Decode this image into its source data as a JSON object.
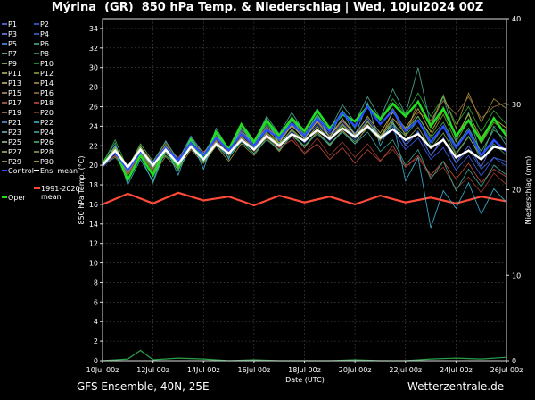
{
  "header": {
    "title": "Mýrina  (GR)  850 hPa Temp. & Niederschlag | Wed, 10Jul2024 00Z"
  },
  "footer": {
    "model": "GFS Ensemble, 40N, 25E",
    "source": "Wetterzentrale.de"
  },
  "chart_data": {
    "type": "line",
    "title": "Mýrina  (GR)  850 hPa Temp. & Niederschlag | Wed, 10Jul2024 00Z",
    "xlabel": "Date (UTC)",
    "ylabel": "850 hPa Temp. (°C)",
    "y2label": "Niederschlag (mm)",
    "ylim": [
      0,
      35
    ],
    "y2lim": [
      0,
      40
    ],
    "yticks": [
      0,
      2,
      4,
      6,
      8,
      10,
      12,
      14,
      16,
      18,
      20,
      22,
      24,
      26,
      28,
      30,
      32,
      34
    ],
    "y2ticks": [
      0,
      10,
      20,
      30,
      40
    ],
    "x_range_days": [
      0,
      16
    ],
    "x_ticks": [
      {
        "day": 0,
        "label": "10Jul 00z"
      },
      {
        "day": 2,
        "label": "12Jul 00z"
      },
      {
        "day": 4,
        "label": "14Jul 00z"
      },
      {
        "day": 6,
        "label": "16Jul 00z"
      },
      {
        "day": 8,
        "label": "18Jul 00z"
      },
      {
        "day": 10,
        "label": "20Jul 00z"
      },
      {
        "day": 12,
        "label": "22Jul 00z"
      },
      {
        "day": 14,
        "label": "24Jul 00z"
      },
      {
        "day": 16,
        "label": "26Jul 00z"
      }
    ],
    "grid": true,
    "legend_position": "left",
    "legend": [
      {
        "label": "P1",
        "color": "#6b7cff"
      },
      {
        "label": "P2",
        "color": "#3b66ff"
      },
      {
        "label": "P3",
        "color": "#7a8cff"
      },
      {
        "label": "P4",
        "color": "#3f6cd8"
      },
      {
        "label": "P5",
        "color": "#4fa0ff"
      },
      {
        "label": "P6",
        "color": "#4fb6a0"
      },
      {
        "label": "P7",
        "color": "#7fd0a0"
      },
      {
        "label": "P8",
        "color": "#3fae7a"
      },
      {
        "label": "P9",
        "color": "#9fd070"
      },
      {
        "label": "P10",
        "color": "#2fb43a"
      },
      {
        "label": "P11",
        "color": "#c0c060"
      },
      {
        "label": "P12",
        "color": "#8fb030"
      },
      {
        "label": "P13",
        "color": "#d0c070"
      },
      {
        "label": "P14",
        "color": "#b09a40"
      },
      {
        "label": "P15",
        "color": "#c09a70"
      },
      {
        "label": "P16",
        "color": "#a07a40"
      },
      {
        "label": "P17",
        "color": "#c07050"
      },
      {
        "label": "P18",
        "color": "#d05040"
      },
      {
        "label": "P19",
        "color": "#c08060"
      },
      {
        "label": "P20",
        "color": "#a04030"
      },
      {
        "label": "P21",
        "color": "#60a0e0"
      },
      {
        "label": "P22",
        "color": "#40c0e0"
      },
      {
        "label": "P23",
        "color": "#70c0c0"
      },
      {
        "label": "P24",
        "color": "#40b0a0"
      },
      {
        "label": "P25",
        "color": "#a0d0a0"
      },
      {
        "label": "P26",
        "color": "#50c070"
      },
      {
        "label": "P27",
        "color": "#b0c070"
      },
      {
        "label": "P28",
        "color": "#90b050"
      },
      {
        "label": "P29",
        "color": "#c0b050"
      },
      {
        "label": "P30",
        "color": "#d0c040"
      },
      {
        "label": "Control",
        "color": "#2a4dff"
      },
      {
        "label": "Ens. mean",
        "color": "#ffffff"
      },
      {
        "label": "Oper",
        "color": "#22dd22"
      },
      {
        "label": "1991-2020 mean",
        "color": "#ff4a3a"
      }
    ],
    "step_hours": 6,
    "climate_mean": {
      "name": "1991-2020 mean",
      "color": "#ff4a3a",
      "daily_values": [
        16.0,
        17.1,
        16.1,
        17.2,
        16.4,
        16.8,
        15.9,
        16.9,
        16.2,
        16.8,
        16.0,
        16.9,
        16.2,
        16.7,
        16.1,
        16.8,
        16.3
      ],
      "note_x_days": 0
    },
    "ens_mean": {
      "name": "Ens. mean",
      "color": "#ffffff",
      "x_days": [
        0,
        0.5,
        1,
        1.5,
        2,
        2.5,
        3,
        3.5,
        4,
        4.5,
        5,
        5.5,
        6,
        6.5,
        7,
        7.5,
        8,
        8.5,
        9,
        9.5,
        10,
        10.5,
        11,
        11.5,
        12,
        12.5,
        13,
        13.5,
        14,
        14.5,
        15,
        15.5,
        16
      ],
      "values": [
        20.0,
        21.5,
        19.8,
        21.6,
        20.0,
        21.6,
        20.1,
        21.9,
        20.6,
        22.2,
        21.2,
        22.6,
        21.6,
        23.0,
        22.0,
        23.2,
        22.5,
        23.6,
        22.7,
        23.8,
        22.9,
        24.0,
        22.8,
        23.7,
        22.6,
        23.2,
        21.8,
        22.6,
        20.8,
        21.5,
        20.6,
        21.9,
        21.6
      ]
    },
    "control": {
      "name": "Control",
      "color": "#2a4dff",
      "x_days": [
        0,
        0.5,
        1,
        1.5,
        2,
        2.5,
        3,
        3.5,
        4,
        4.5,
        5,
        5.5,
        6,
        6.5,
        7,
        7.5,
        8,
        8.5,
        9,
        9.5,
        10,
        10.5,
        11,
        11.5,
        12,
        12.5,
        13,
        13.5,
        14,
        14.5,
        15,
        15.5,
        16
      ],
      "values": [
        20.0,
        21.3,
        19.5,
        21.4,
        20.2,
        21.8,
        20.5,
        22.3,
        21.0,
        22.8,
        21.5,
        23.2,
        22.0,
        23.6,
        22.8,
        24.3,
        23.0,
        24.8,
        23.5,
        25.4,
        24.0,
        26.0,
        24.2,
        25.6,
        23.5,
        24.6,
        22.4,
        24.0,
        21.8,
        23.5,
        21.0,
        22.6,
        21.4
      ]
    },
    "oper": {
      "name": "Oper",
      "color": "#22dd22",
      "x_days": [
        0,
        0.5,
        1,
        1.5,
        2,
        2.5,
        3,
        3.5,
        4,
        4.5,
        5,
        5.5,
        6,
        6.5,
        7,
        7.5,
        8,
        8.5,
        9,
        9.5,
        10,
        10.5,
        11,
        11.5,
        12,
        12.5,
        13,
        13.5,
        14,
        14.5,
        15,
        15.5,
        16
      ],
      "values": [
        20.2,
        21.5,
        18.5,
        21.0,
        19.0,
        21.8,
        19.8,
        22.6,
        20.6,
        23.4,
        21.6,
        24.2,
        22.4,
        24.6,
        23.0,
        24.8,
        23.5,
        25.6,
        23.8,
        25.2,
        24.5,
        26.0,
        24.7,
        26.3,
        25.0,
        26.5,
        24.0,
        25.8,
        23.0,
        24.6,
        22.5,
        24.8,
        23.0
      ]
    },
    "members": [
      {
        "name": "P1",
        "color": "#6b7cff",
        "values": [
          20.1,
          22.0,
          19.5,
          21.8,
          20.0,
          22.5,
          20.5,
          23.0,
          21.2,
          23.2,
          21.4,
          23.6,
          22.0,
          24.0,
          22.5,
          24.2,
          23.0,
          24.6,
          23.2,
          24.6,
          23.3,
          24.8,
          23.0,
          24.3,
          22.0,
          23.4,
          21.0,
          22.8,
          20.3,
          22.0,
          19.8,
          22.5,
          21.4
        ]
      },
      {
        "name": "P2",
        "color": "#3b66ff",
        "values": [
          20.0,
          21.4,
          19.0,
          21.5,
          19.8,
          21.9,
          20.3,
          22.5,
          21.0,
          22.8,
          21.6,
          23.4,
          22.2,
          23.8,
          22.6,
          24.0,
          22.8,
          24.2,
          22.9,
          24.3,
          23.0,
          24.6,
          22.6,
          23.6,
          21.6,
          22.8,
          20.6,
          21.8,
          19.5,
          21.0,
          18.9,
          20.8,
          19.9
        ]
      },
      {
        "name": "P4",
        "color": "#3f6cd8",
        "values": [
          19.8,
          21.0,
          19.2,
          21.2,
          19.6,
          21.3,
          20.0,
          22.0,
          20.6,
          22.4,
          21.2,
          22.8,
          21.8,
          23.2,
          22.0,
          23.5,
          22.3,
          23.7,
          22.5,
          23.9,
          22.6,
          24.2,
          22.9,
          24.0,
          22.2,
          23.5,
          21.0,
          22.6,
          20.2,
          21.6,
          19.6,
          20.8,
          20.4
        ]
      },
      {
        "name": "P6",
        "color": "#4fb6a0",
        "values": [
          20.3,
          22.3,
          18.6,
          21.0,
          18.2,
          21.6,
          19.4,
          22.8,
          20.4,
          23.8,
          21.6,
          24.0,
          22.4,
          25.0,
          23.2,
          25.4,
          23.4,
          25.8,
          23.6,
          26.2,
          24.4,
          27.0,
          24.8,
          27.8,
          25.2,
          30.0,
          24.0,
          27.0,
          22.6,
          25.4,
          20.8,
          24.0,
          22.0
        ]
      },
      {
        "name": "P8",
        "color": "#3fae7a",
        "values": [
          20.0,
          20.8,
          19.4,
          21.6,
          20.2,
          21.5,
          19.9,
          21.8,
          20.3,
          22.0,
          20.8,
          22.6,
          21.2,
          23.0,
          21.5,
          23.2,
          22.0,
          23.4,
          22.2,
          23.5,
          22.4,
          23.8,
          22.6,
          24.2,
          23.0,
          24.6,
          22.0,
          24.0,
          21.2,
          23.0,
          20.6,
          22.2,
          21.0
        ]
      },
      {
        "name": "P10",
        "color": "#2fb43a",
        "values": [
          20.2,
          22.6,
          19.6,
          22.0,
          19.2,
          22.0,
          19.8,
          22.8,
          20.8,
          23.0,
          21.4,
          23.8,
          22.2,
          24.4,
          22.7,
          24.8,
          23.2,
          25.0,
          23.4,
          25.6,
          23.8,
          26.2,
          24.6,
          26.8,
          25.2,
          27.4,
          25.0,
          27.0,
          24.2,
          26.0,
          23.4,
          25.6,
          24.2
        ]
      },
      {
        "name": "P12",
        "color": "#8fb030",
        "values": [
          19.9,
          21.8,
          19.8,
          21.2,
          19.4,
          21.2,
          20.1,
          22.2,
          20.8,
          22.6,
          21.0,
          23.0,
          21.6,
          23.4,
          22.2,
          23.6,
          22.4,
          24.0,
          22.6,
          24.1,
          22.8,
          24.4,
          23.0,
          24.8,
          23.2,
          25.0,
          23.0,
          25.2,
          22.4,
          24.6,
          22.2,
          24.4,
          23.4
        ]
      },
      {
        "name": "P14",
        "color": "#b09a40",
        "values": [
          20.0,
          21.2,
          19.0,
          21.0,
          19.0,
          20.9,
          19.6,
          21.6,
          20.2,
          22.0,
          20.4,
          22.2,
          21.0,
          22.8,
          21.4,
          23.2,
          21.8,
          23.4,
          22.0,
          23.6,
          22.2,
          24.0,
          22.5,
          25.6,
          23.0,
          26.6,
          24.2,
          27.2,
          23.8,
          27.4,
          24.4,
          26.8,
          25.8
        ]
      },
      {
        "name": "P16",
        "color": "#a07a40",
        "values": [
          20.1,
          21.6,
          19.2,
          21.4,
          19.9,
          22.2,
          20.4,
          22.6,
          21.0,
          23.0,
          21.6,
          23.4,
          22.4,
          23.9,
          22.8,
          24.0,
          23.0,
          24.4,
          23.0,
          24.5,
          23.2,
          24.2,
          22.6,
          24.8,
          23.6,
          25.4,
          24.6,
          26.6,
          25.2,
          27.0,
          24.8,
          26.0,
          26.4
        ]
      },
      {
        "name": "P18",
        "color": "#d05040",
        "values": [
          20.0,
          21.0,
          19.6,
          21.4,
          20.4,
          21.7,
          20.8,
          22.2,
          21.4,
          22.4,
          21.8,
          22.8,
          22.0,
          23.0,
          21.8,
          22.6,
          21.2,
          22.2,
          20.6,
          21.8,
          20.2,
          21.6,
          20.4,
          22.0,
          19.8,
          21.0,
          19.0,
          20.4,
          18.6,
          20.2,
          18.2,
          19.6,
          18.8
        ]
      },
      {
        "name": "P20",
        "color": "#a04030",
        "values": [
          20.2,
          20.9,
          19.1,
          21.1,
          19.5,
          21.5,
          20.2,
          22.0,
          20.5,
          22.6,
          21.0,
          23.0,
          21.4,
          23.2,
          21.6,
          23.0,
          21.2,
          22.8,
          21.0,
          22.4,
          20.8,
          22.2,
          20.5,
          21.6,
          19.8,
          20.8,
          18.8,
          19.8,
          17.6,
          18.8,
          17.2,
          19.2,
          18.0
        ]
      },
      {
        "name": "P22",
        "color": "#40c0e0",
        "values": [
          20.0,
          22.0,
          18.0,
          20.6,
          18.4,
          21.8,
          19.0,
          22.6,
          19.6,
          23.4,
          20.6,
          24.2,
          21.6,
          24.8,
          22.2,
          25.0,
          22.6,
          25.2,
          22.8,
          25.6,
          23.0,
          26.4,
          22.0,
          24.6,
          18.4,
          20.8,
          13.6,
          17.4,
          15.6,
          18.2,
          15.0,
          17.6,
          16.2
        ]
      },
      {
        "name": "P24",
        "color": "#40b0a0",
        "values": [
          20.1,
          21.2,
          19.4,
          21.4,
          19.8,
          21.0,
          20.0,
          21.8,
          20.4,
          22.2,
          20.8,
          22.4,
          21.2,
          22.6,
          21.6,
          23.0,
          22.0,
          23.2,
          22.1,
          23.4,
          22.2,
          23.4,
          21.4,
          22.6,
          20.0,
          21.6,
          18.6,
          20.4,
          17.4,
          19.6,
          17.8,
          20.0,
          19.0
        ]
      },
      {
        "name": "P26",
        "color": "#50c070",
        "values": [
          20.0,
          21.6,
          19.7,
          22.2,
          20.4,
          22.4,
          20.6,
          22.8,
          21.2,
          23.2,
          21.8,
          23.8,
          22.3,
          24.2,
          22.7,
          24.6,
          23.1,
          25.2,
          23.5,
          25.6,
          24.0,
          26.2,
          24.2,
          25.8,
          23.6,
          25.0,
          22.8,
          24.4,
          22.0,
          23.8,
          21.4,
          23.6,
          22.6
        ]
      },
      {
        "name": "P28",
        "color": "#90b050",
        "values": [
          19.9,
          21.3,
          19.3,
          21.3,
          19.7,
          21.4,
          20.1,
          22.1,
          20.7,
          22.5,
          21.1,
          22.9,
          21.7,
          23.3,
          22.1,
          23.7,
          22.5,
          24.0,
          22.7,
          24.2,
          22.9,
          24.5,
          22.9,
          24.4,
          22.5,
          23.9,
          21.7,
          23.3,
          21.1,
          22.9,
          20.9,
          22.5,
          21.5
        ]
      },
      {
        "name": "P30",
        "color": "#d0c040",
        "values": [
          20.2,
          21.8,
          19.9,
          21.9,
          20.2,
          22.0,
          20.4,
          22.4,
          20.9,
          22.9,
          21.3,
          23.3,
          21.9,
          23.7,
          22.3,
          24.1,
          22.7,
          24.5,
          22.9,
          24.8,
          23.1,
          25.0,
          23.3,
          25.4,
          23.8,
          25.8,
          23.4,
          25.6,
          23.0,
          25.2,
          22.8,
          24.8,
          23.8
        ]
      }
    ],
    "precipitation": {
      "name": "Niederschlag",
      "color": "#2aa04a",
      "x_days": [
        0,
        1,
        1.5,
        2,
        3,
        4,
        5,
        6,
        7,
        8,
        9,
        10,
        11,
        12,
        13,
        14,
        15,
        16
      ],
      "values": [
        0,
        0.2,
        1.2,
        0.1,
        0.3,
        0.2,
        0,
        0.1,
        0,
        0,
        0,
        0.1,
        0,
        0,
        0.2,
        0.3,
        0.2,
        0.4
      ]
    }
  }
}
